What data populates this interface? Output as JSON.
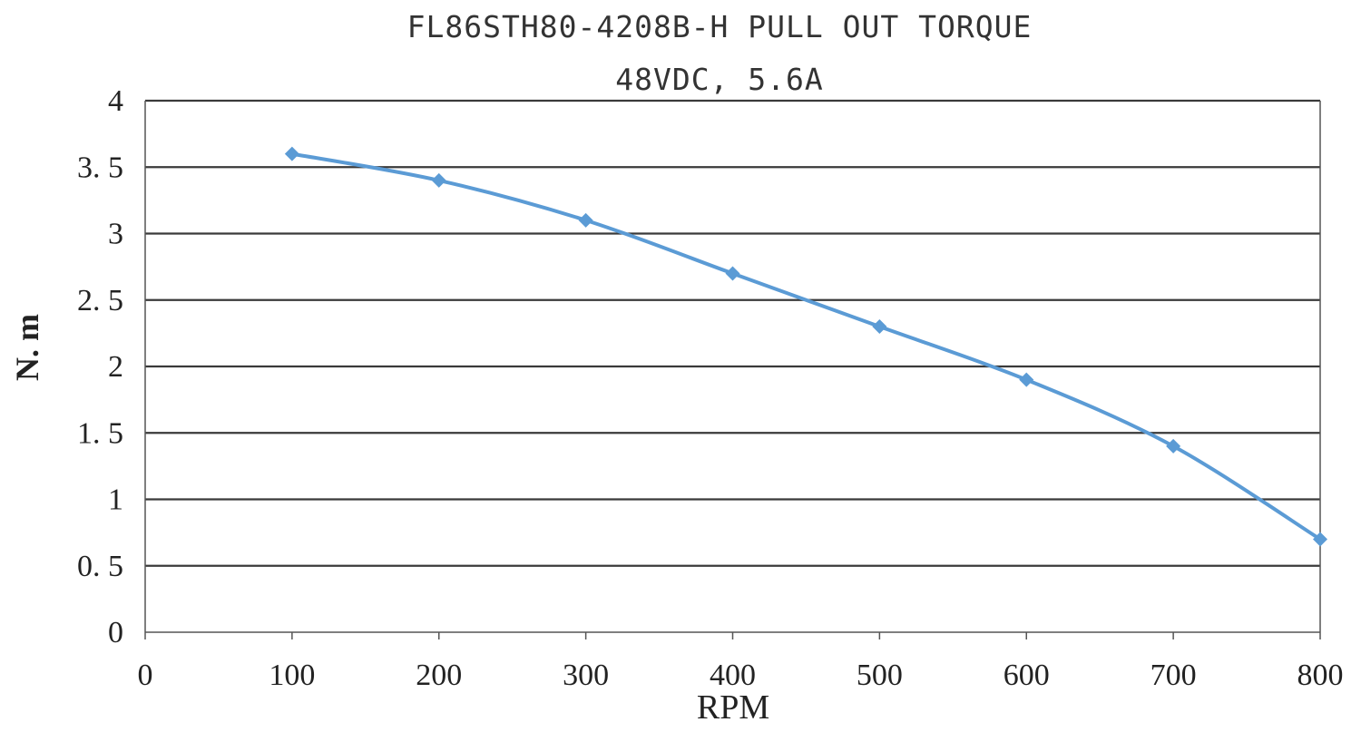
{
  "chart_data": {
    "type": "line",
    "title": "FL86STH80-4208B-H PULL OUT TORQUE",
    "subtitle": "48VDC, 5.6A",
    "xlabel": "RPM",
    "ylabel": "N. m",
    "xlim": [
      0,
      800
    ],
    "ylim": [
      0,
      4
    ],
    "x_ticks": [
      0,
      100,
      200,
      300,
      400,
      500,
      600,
      700,
      800
    ],
    "x_tick_labels": [
      "0",
      "100",
      "200",
      "300",
      "400",
      "500",
      "600",
      "700",
      "800"
    ],
    "y_ticks": [
      0,
      0.5,
      1,
      1.5,
      2,
      2.5,
      3,
      3.5,
      4
    ],
    "y_tick_labels": [
      "0",
      "0. 5",
      "1",
      "1. 5",
      "2",
      "2. 5",
      "3",
      "3. 5",
      "4"
    ],
    "grid": "horizontal",
    "legend": "none",
    "series": [
      {
        "x": [
          100,
          200,
          300,
          400,
          500,
          600,
          700,
          800
        ],
        "y": [
          3.6,
          3.4,
          3.1,
          2.7,
          2.3,
          1.9,
          1.4,
          0.7
        ],
        "color": "#5b9bd5",
        "marker": "diamond"
      }
    ]
  }
}
